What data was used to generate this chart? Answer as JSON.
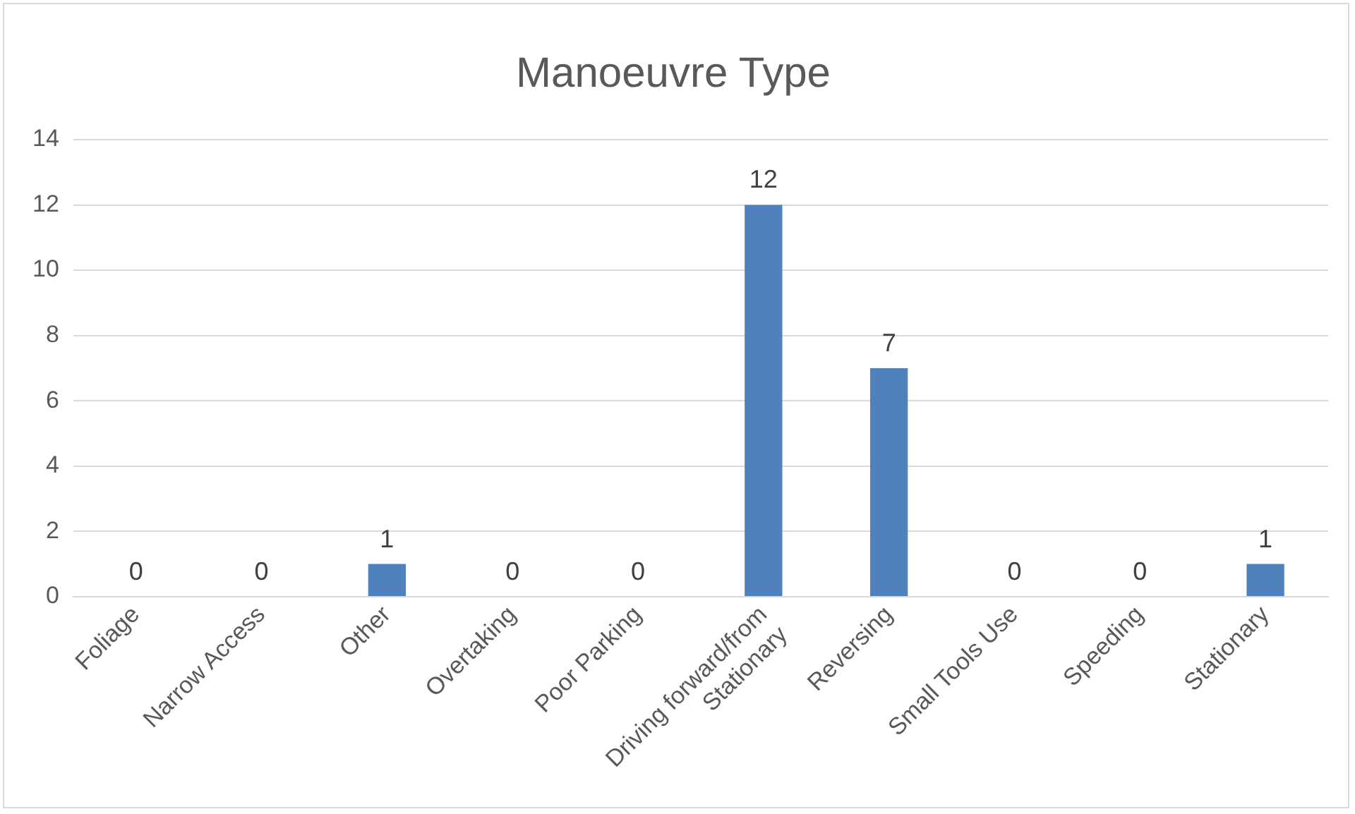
{
  "chart_data": {
    "type": "bar",
    "title": "Manoeuvre Type",
    "categories": [
      "Foliage",
      "Narrow Access",
      "Other",
      "Overtaking",
      "Poor Parking",
      "Driving forward/from Stationary",
      "Reversing",
      "Small Tools Use",
      "Speeding",
      "Stationary"
    ],
    "values": [
      0,
      0,
      1,
      0,
      0,
      12,
      7,
      0,
      0,
      1
    ],
    "color": "#4f81bd",
    "ylim": [
      0,
      14
    ],
    "yticks": [
      0,
      2,
      4,
      6,
      8,
      10,
      12,
      14
    ],
    "grid": "y",
    "data_labels": true
  }
}
